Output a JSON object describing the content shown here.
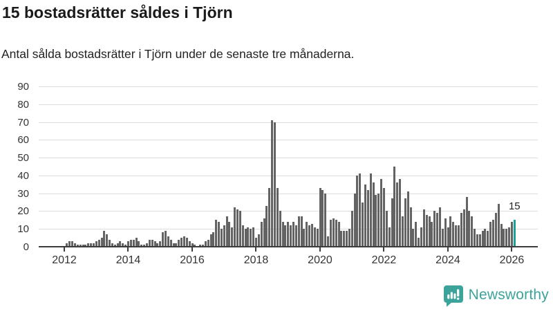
{
  "header": {
    "title": "15 bostadsrätter såldes i Tjörn",
    "subtitle": "Antal sålda bostadsrätter i Tjörn under de senaste tre månaderna."
  },
  "footer": {
    "logo_text": "Newsworthy",
    "logo_color": "#3ca39b"
  },
  "chart_data": {
    "type": "bar",
    "title": "15 bostadsrätter såldes i Tjörn",
    "xlabel": "",
    "ylabel": "",
    "x_start_month": "2011-04",
    "x_end_month": "2026-02",
    "x_unit": "month",
    "ylim": [
      0,
      90
    ],
    "ytick_labels": [
      "0",
      "10",
      "20",
      "30",
      "40",
      "50",
      "60",
      "70",
      "80",
      "90"
    ],
    "xtick_labels": [
      "2012",
      "2014",
      "2016",
      "2018",
      "2020",
      "2022",
      "2024",
      "2026"
    ],
    "grid": true,
    "bar_color": "#636363",
    "highlight_color": "#1aa296",
    "highlight_last_bar": true,
    "annotation": {
      "text": "15",
      "value": 15
    },
    "values": [
      0,
      0,
      0,
      0,
      0,
      0,
      0,
      0,
      0,
      0,
      2,
      3,
      3,
      2,
      1,
      1,
      1,
      1,
      2,
      2,
      2,
      3,
      4,
      5,
      9,
      7,
      4,
      2,
      1,
      2,
      3,
      2,
      1,
      3,
      4,
      4,
      5,
      3,
      1,
      1,
      2,
      4,
      4,
      3,
      2,
      3,
      8,
      9,
      6,
      4,
      2,
      2,
      4,
      5,
      6,
      5,
      3,
      2,
      1,
      0,
      1,
      1,
      3,
      4,
      7,
      8,
      15,
      14,
      10,
      12,
      17,
      14,
      11,
      22,
      21,
      20,
      12,
      10,
      11,
      10,
      11,
      5,
      7,
      14,
      16,
      23,
      33,
      71,
      70,
      33,
      20,
      14,
      12,
      14,
      12,
      14,
      12,
      17,
      17,
      10,
      14,
      12,
      13,
      11,
      10,
      33,
      32,
      30,
      6,
      15,
      16,
      15,
      14,
      9,
      9,
      9,
      10,
      20,
      30,
      40,
      41,
      25,
      35,
      32,
      41,
      36,
      29,
      30,
      38,
      33,
      20,
      11,
      27,
      45,
      36,
      38,
      17,
      27,
      31,
      22,
      10,
      14,
      5,
      11,
      21,
      18,
      17,
      14,
      20,
      19,
      22,
      10,
      16,
      11,
      17,
      14,
      12,
      12,
      19,
      21,
      28,
      20,
      17,
      10,
      7,
      7,
      9,
      10,
      9,
      14,
      15,
      19,
      24,
      13,
      10,
      10,
      11,
      14,
      15
    ]
  }
}
